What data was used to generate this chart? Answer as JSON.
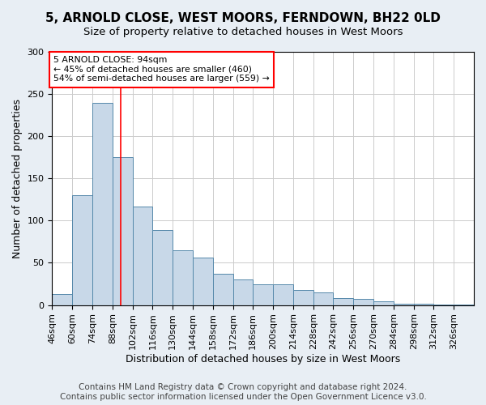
{
  "title1": "5, ARNOLD CLOSE, WEST MOORS, FERNDOWN, BH22 0LD",
  "title2": "Size of property relative to detached houses in West Moors",
  "xlabel": "Distribution of detached houses by size in West Moors",
  "ylabel": "Number of detached properties",
  "bar_values": [
    13,
    130,
    240,
    175,
    117,
    89,
    65,
    56,
    37,
    30,
    25,
    25,
    18,
    15,
    8,
    7,
    4,
    2,
    2,
    1,
    1
  ],
  "bin_labels": [
    "46sqm",
    "60sqm",
    "74sqm",
    "88sqm",
    "102sqm",
    "116sqm",
    "130sqm",
    "144sqm",
    "158sqm",
    "172sqm",
    "186sqm",
    "200sqm",
    "214sqm",
    "228sqm",
    "242sqm",
    "256sqm",
    "270sqm",
    "284sqm",
    "298sqm",
    "312sqm",
    "326sqm"
  ],
  "bin_edges": [
    46,
    60,
    74,
    88,
    102,
    116,
    130,
    144,
    158,
    172,
    186,
    200,
    214,
    228,
    242,
    256,
    270,
    284,
    298,
    312,
    326,
    340
  ],
  "bar_color": "#c8d8e8",
  "bar_edge_color": "#5588aa",
  "red_line_x": 94,
  "annotation_text": "5 ARNOLD CLOSE: 94sqm\n← 45% of detached houses are smaller (460)\n54% of semi-detached houses are larger (559) →",
  "annotation_box_color": "white",
  "annotation_box_edge_color": "red",
  "ylim": [
    0,
    300
  ],
  "yticks": [
    0,
    50,
    100,
    150,
    200,
    250,
    300
  ],
  "footer_text": "Contains HM Land Registry data © Crown copyright and database right 2024.\nContains public sector information licensed under the Open Government Licence v3.0.",
  "bg_color": "#e8eef4",
  "plot_bg_color": "white",
  "title1_fontsize": 11,
  "title2_fontsize": 9.5,
  "xlabel_fontsize": 9,
  "ylabel_fontsize": 9,
  "tick_fontsize": 8,
  "footer_fontsize": 7.5
}
